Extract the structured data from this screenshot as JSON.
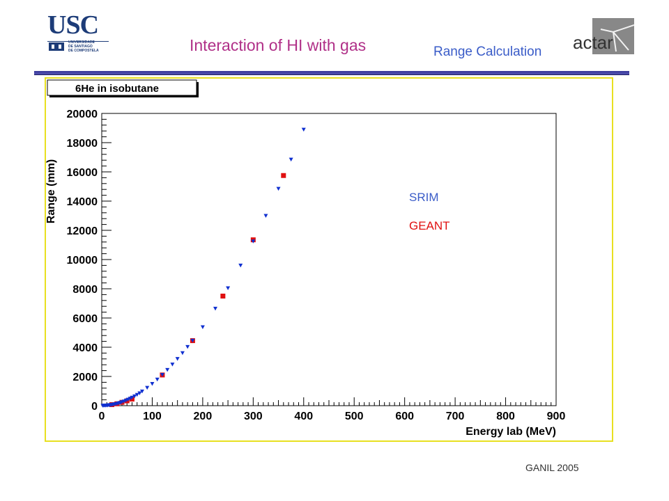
{
  "header": {
    "logo_text": "USC",
    "logo_subtext": "UNIVERSIDADE\nDE SANTIAGO\nDE COMPOSTELA",
    "title": "Interaction of HI with gas",
    "subtitle": "Range Calculation",
    "actar_logo_text": "actar"
  },
  "footer": {
    "text": "GANIL 2005"
  },
  "colors": {
    "title": "#b03088",
    "subtitle": "#3a5cc8",
    "srim": "#1030d0",
    "geant": "#e01010",
    "frame": "#e8e020"
  },
  "chart_data": {
    "type": "scatter",
    "title": "6He in isobutane",
    "xlabel": "Energy lab (MeV)",
    "ylabel": "Range (mm)",
    "xlim": [
      0,
      900
    ],
    "ylim": [
      0,
      20000
    ],
    "xticks": [
      0,
      100,
      200,
      300,
      400,
      500,
      600,
      700,
      800,
      900
    ],
    "yticks": [
      0,
      2000,
      4000,
      6000,
      8000,
      10000,
      12000,
      14000,
      16000,
      18000,
      20000
    ],
    "grid": false,
    "legend_position": "right",
    "series": [
      {
        "name": "SRIM",
        "marker": "triangle-down",
        "x": [
          2,
          4,
          6,
          8,
          10,
          12,
          14,
          16,
          18,
          20,
          22,
          25,
          28,
          31,
          34,
          37,
          40,
          44,
          48,
          52,
          56,
          60,
          65,
          70,
          75,
          80,
          90,
          100,
          110,
          120,
          130,
          140,
          150,
          160,
          170,
          180,
          200,
          225,
          250,
          275,
          300,
          325,
          350,
          375,
          400
        ],
        "y": [
          5,
          10,
          15,
          20,
          25,
          30,
          40,
          50,
          60,
          70,
          80,
          100,
          120,
          150,
          180,
          210,
          250,
          300,
          360,
          420,
          490,
          560,
          650,
          750,
          860,
          980,
          1230,
          1500,
          1800,
          2120,
          2460,
          2830,
          3210,
          3610,
          4030,
          4460,
          5380,
          6650,
          8050,
          9600,
          11250,
          13000,
          14850,
          16850,
          18900
        ]
      },
      {
        "name": "GEANT",
        "marker": "square",
        "x": [
          20,
          30,
          40,
          50,
          60,
          120,
          180,
          240,
          300,
          360
        ],
        "y": [
          70,
          130,
          230,
          330,
          450,
          2100,
          4450,
          7500,
          11350,
          15750
        ]
      }
    ]
  }
}
